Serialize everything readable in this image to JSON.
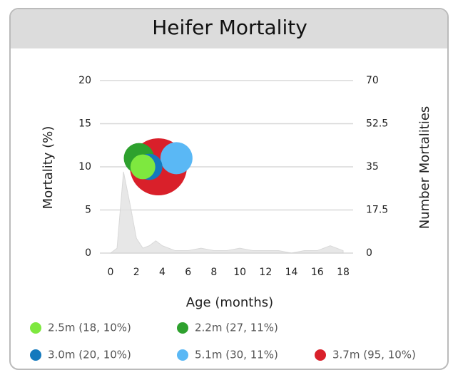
{
  "chart_data": {
    "type": "bubble",
    "title": "Heifer Mortality",
    "x_label": "Age (months)",
    "y_label": "Mortality (%)",
    "y2_label": "Number Mortalities",
    "xlim": [
      0,
      18
    ],
    "xticks": [
      0,
      2,
      4,
      6,
      8,
      10,
      12,
      14,
      16,
      18
    ],
    "ylim": [
      0,
      20
    ],
    "yticks": [
      0,
      5,
      10,
      15,
      20
    ],
    "y2lim": [
      0,
      70
    ],
    "y2ticks": [
      0,
      17.5,
      35,
      52.5,
      70
    ],
    "grid": true,
    "series": [
      {
        "name": "2.5m (18, 10%)",
        "color": "#7ee83f",
        "x": [
          2.5
        ],
        "values": [
          10
        ],
        "sizes": [
          18
        ]
      },
      {
        "name": "2.2m (27, 11%)",
        "color": "#2ea12e",
        "x": [
          2.2
        ],
        "values": [
          11
        ],
        "sizes": [
          27
        ]
      },
      {
        "name": "3.0m (20, 10%)",
        "color": "#1479bd",
        "x": [
          3.0
        ],
        "values": [
          10
        ],
        "sizes": [
          20
        ]
      },
      {
        "name": "5.1m (30, 11%)",
        "color": "#5ab8f5",
        "x": [
          5.1
        ],
        "values": [
          11
        ],
        "sizes": [
          30
        ]
      },
      {
        "name": "3.7m (95, 10%)",
        "color": "#d9202a",
        "x": [
          3.7
        ],
        "values": [
          10
        ],
        "sizes": [
          95
        ]
      }
    ],
    "area": {
      "axis": "y2",
      "color": "#e2e2e2",
      "x": [
        0,
        0.5,
        1,
        1.5,
        2,
        2.5,
        3,
        3.5,
        4,
        5,
        6,
        7,
        8,
        9,
        10,
        11,
        12,
        13,
        14,
        15,
        16,
        17,
        18
      ],
      "values": [
        0,
        2,
        33,
        20,
        6,
        2,
        3,
        5,
        3,
        1,
        1,
        2,
        1,
        1,
        2,
        1,
        1,
        1,
        0,
        1,
        1,
        3,
        1
      ]
    }
  }
}
